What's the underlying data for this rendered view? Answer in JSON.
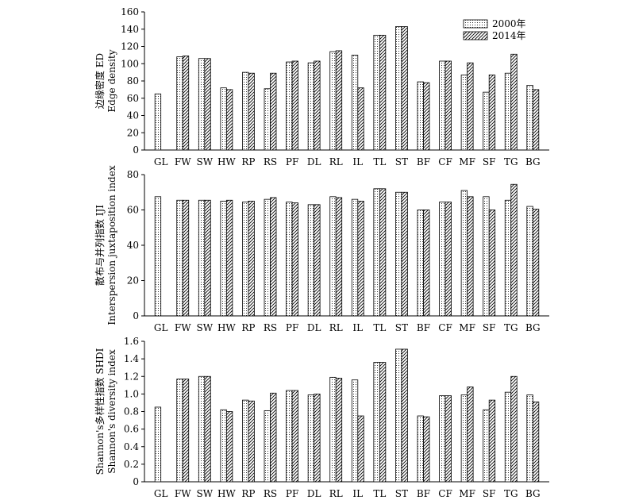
{
  "chart_data": [
    {
      "type": "bar",
      "ylabel_cn": "边缘密度 ED",
      "ylabel_en": "Edge density",
      "ylim": [
        0,
        160
      ],
      "yticks": [
        0,
        20,
        40,
        60,
        80,
        100,
        120,
        140,
        160
      ],
      "ytick_labels": [
        "0",
        "20",
        "40",
        "60",
        "80",
        "100",
        "120",
        "140",
        "160"
      ],
      "categories": [
        "GL",
        "FW",
        "SW",
        "HW",
        "RP",
        "RS",
        "PF",
        "DL",
        "RL",
        "IL",
        "TL",
        "ST",
        "BF",
        "CF",
        "MF",
        "SF",
        "TG",
        "BG"
      ],
      "legend": {
        "position": "top-right",
        "entries": [
          "2000年",
          "2014年"
        ]
      },
      "series": [
        {
          "name": "2000年",
          "values": [
            65,
            108,
            106,
            72,
            90,
            71,
            102,
            101,
            114,
            110,
            133,
            143,
            79,
            103,
            87,
            67,
            89,
            75
          ]
        },
        {
          "name": "2014年",
          "values": [
            null,
            109,
            106,
            70,
            89,
            89,
            103,
            103,
            115,
            72,
            133,
            143,
            78,
            103,
            101,
            87,
            111,
            70
          ]
        }
      ]
    },
    {
      "type": "bar",
      "ylabel_cn": "散布与并列指数 IJI",
      "ylabel_en": "Interspersion juxtaposition index",
      "ylim": [
        0,
        80
      ],
      "yticks": [
        0,
        20,
        40,
        60,
        80
      ],
      "ytick_labels": [
        "0",
        "20",
        "40",
        "60",
        "80"
      ],
      "categories": [
        "GL",
        "FW",
        "SW",
        "HW",
        "RP",
        "RS",
        "PF",
        "DL",
        "RL",
        "IL",
        "TL",
        "ST",
        "BF",
        "CF",
        "MF",
        "SF",
        "TG",
        "BG"
      ],
      "series": [
        {
          "name": "2000年",
          "values": [
            67.5,
            65.5,
            65.5,
            65,
            64.5,
            66,
            64.5,
            63,
            67.5,
            66,
            72,
            70,
            60,
            64.5,
            71,
            67.5,
            65.5,
            62
          ]
        },
        {
          "name": "2014年",
          "values": [
            null,
            65.5,
            65.5,
            65.5,
            65,
            67,
            64,
            63,
            67,
            65,
            72,
            70,
            60,
            64.5,
            67.5,
            60,
            74.5,
            60.5
          ]
        }
      ]
    },
    {
      "type": "bar",
      "ylabel_cn": "Shannon's多样性指数 SHDI",
      "ylabel_en": "Shannon's diversity index",
      "ylim": [
        0,
        1.6
      ],
      "yticks": [
        0,
        0.2,
        0.4,
        0.6,
        0.8,
        1.0,
        1.2,
        1.4,
        1.6
      ],
      "ytick_labels": [
        "0",
        "0.2",
        "0.4",
        "0.6",
        "0.8",
        "1.0",
        "1.2",
        "1.4",
        "1.6"
      ],
      "categories": [
        "GL",
        "FW",
        "SW",
        "HW",
        "RP",
        "RS",
        "PF",
        "DL",
        "RL",
        "IL",
        "TL",
        "ST",
        "BF",
        "CF",
        "MF",
        "SF",
        "TG",
        "BG"
      ],
      "series": [
        {
          "name": "2000年",
          "values": [
            0.85,
            1.17,
            1.2,
            0.82,
            0.93,
            0.81,
            1.04,
            0.99,
            1.19,
            1.16,
            1.36,
            1.51,
            0.75,
            0.98,
            0.99,
            0.82,
            1.02,
            0.99
          ]
        },
        {
          "name": "2014年",
          "values": [
            null,
            1.17,
            1.2,
            0.8,
            0.92,
            1.01,
            1.04,
            1.0,
            1.18,
            0.75,
            1.36,
            1.51,
            0.74,
            0.98,
            1.08,
            0.93,
            1.2,
            0.91
          ]
        }
      ]
    }
  ]
}
